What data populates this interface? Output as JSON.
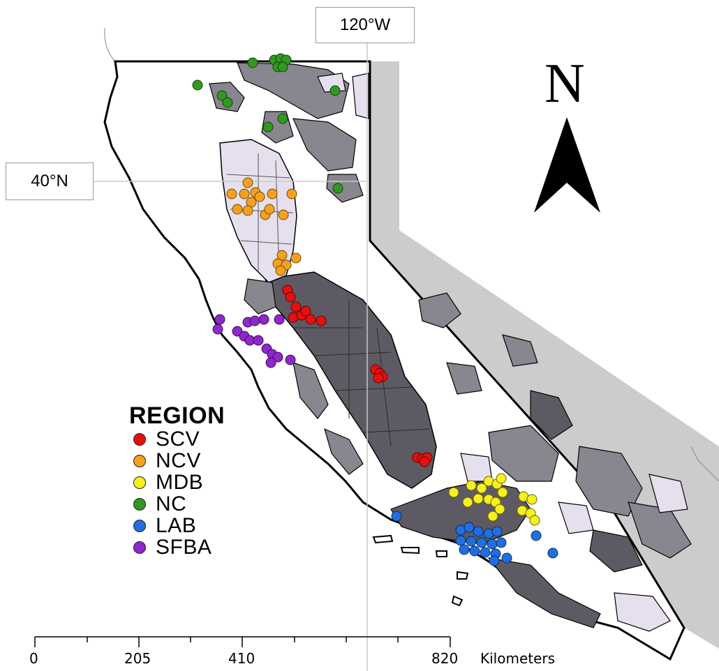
{
  "graticule": {
    "longitude_label": "120°W",
    "latitude_label": "40°N"
  },
  "north_arrow": {
    "letter": "N"
  },
  "legend": {
    "title": "REGION",
    "items": [
      {
        "code": "SCV",
        "color": "#e8100e"
      },
      {
        "code": "NCV",
        "color": "#f7a01d"
      },
      {
        "code": "MDB",
        "color": "#f8f01c"
      },
      {
        "code": "NC",
        "color": "#2f9a1f"
      },
      {
        "code": "LAB",
        "color": "#1f6fe0"
      },
      {
        "code": "SFBA",
        "color": "#8e28c8"
      }
    ]
  },
  "scale_bar": {
    "labels": [
      "0",
      "205",
      "410",
      "820"
    ],
    "unit": "Kilometers"
  },
  "colors": {
    "state_fill": "#ffffff",
    "neighbor_gray": "#cccccc",
    "basin_dark": "#5e5a63",
    "basin_medium": "#8a8690",
    "basin_light": "#e6e0ee",
    "outline": "#000000"
  }
}
